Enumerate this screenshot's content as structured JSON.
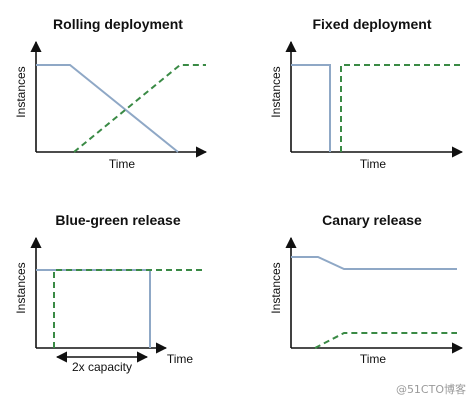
{
  "panels": {
    "rolling": {
      "title": "Rolling deployment",
      "ylabel": "Instances",
      "xlabel": "Time"
    },
    "fixed": {
      "title": "Fixed deployment",
      "ylabel": "Instances",
      "xlabel": "Time"
    },
    "bluegreen": {
      "title": "Blue-green release",
      "ylabel": "Instances",
      "xlabel": "Time",
      "annotation": "2x capacity"
    },
    "canary": {
      "title": "Canary release",
      "ylabel": "Instances",
      "xlabel": "Time"
    }
  },
  "watermark": "@51CTO博客",
  "colors": {
    "old_version": "#8fa8c6",
    "new_version": "#3a8a45",
    "axis": "#111111"
  }
}
